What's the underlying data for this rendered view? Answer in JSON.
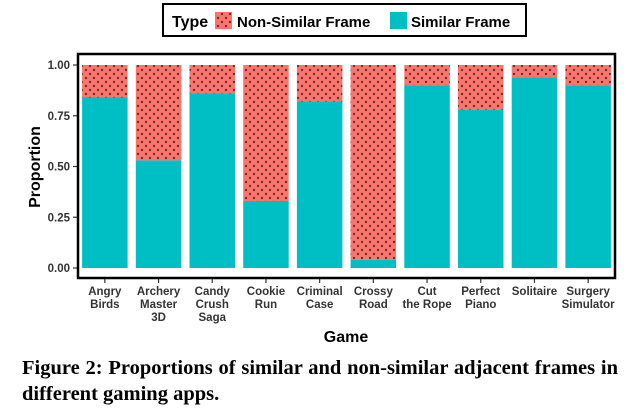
{
  "chart_data": {
    "type": "bar",
    "stacked": true,
    "categories": [
      [
        "Angry",
        "Birds"
      ],
      [
        "Archery",
        "Master",
        "3D"
      ],
      [
        "Candy",
        "Crush",
        "Saga"
      ],
      [
        "Cookie",
        "Run"
      ],
      [
        "Criminal",
        "Case"
      ],
      [
        "Crossy",
        "Road"
      ],
      [
        "Cut",
        "the Rope"
      ],
      [
        "Perfect",
        "Piano"
      ],
      [
        "Solitaire"
      ],
      [
        "Surgery",
        "Simulator"
      ]
    ],
    "series": [
      {
        "name": "Similar Frame",
        "color": "#00BFC4",
        "values": [
          0.84,
          0.53,
          0.86,
          0.33,
          0.82,
          0.04,
          0.9,
          0.78,
          0.94,
          0.9
        ]
      },
      {
        "name": "Non-Similar Frame",
        "color": "#F8766D",
        "pattern": "dots",
        "values": [
          0.16,
          0.47,
          0.14,
          0.67,
          0.18,
          0.96,
          0.1,
          0.22,
          0.06,
          0.1
        ]
      }
    ],
    "legend": {
      "title": "Type",
      "order": [
        "Non-Similar Frame",
        "Similar Frame"
      ],
      "position": "top"
    },
    "xlabel": "Game",
    "ylabel": "Proportion",
    "ylim": [
      0,
      1
    ],
    "yticks": [
      "0.00",
      "0.25",
      "0.50",
      "0.75",
      "1.00"
    ],
    "ytick_values": [
      0,
      0.25,
      0.5,
      0.75,
      1.0
    ],
    "grid": false
  },
  "caption": "Figure 2: Proportions of similar and non-similar adjacent frames in different gaming apps."
}
